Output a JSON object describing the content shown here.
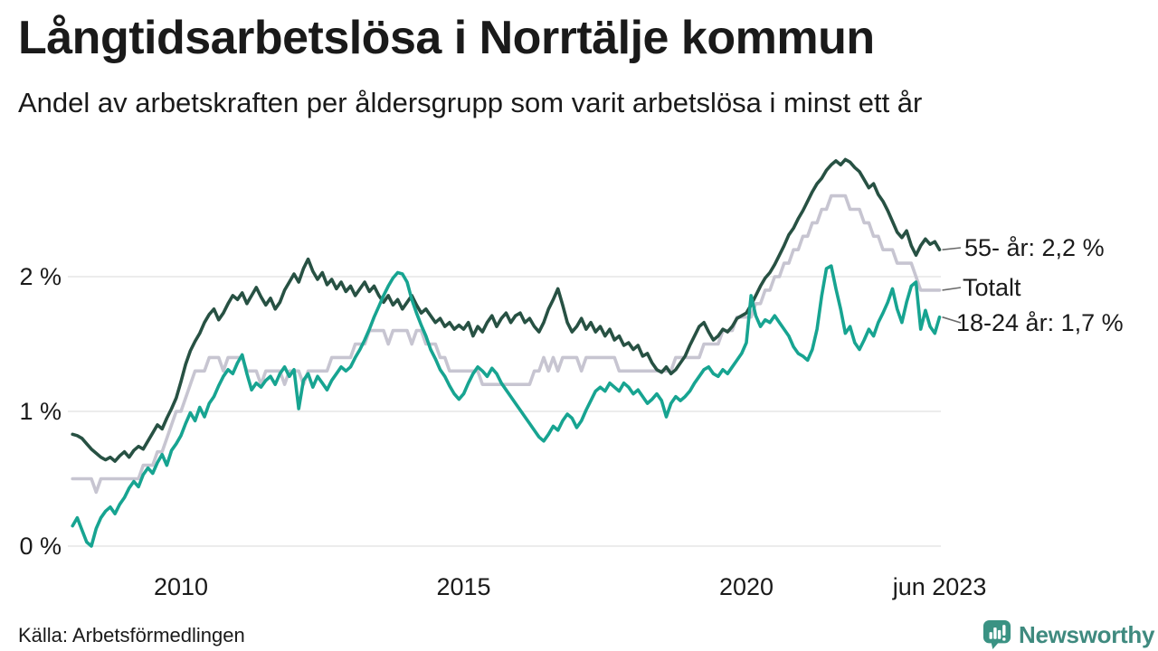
{
  "header": {
    "title": "Långtidsarbetslösa i Norrtälje kommun",
    "subtitle": "Andel av arbetskraften per åldersgrupp som varit arbetslösa i minst ett år"
  },
  "footer": {
    "source": "Källa: Arbetsförmedlingen",
    "brand": "Newsworthy",
    "brand_icon": "newsworthy-bubble-chart-icon"
  },
  "colors": {
    "senior_line": "#275143",
    "total_line": "#c7c5d1",
    "youth_line": "#17a491",
    "grid": "#e6e6e6",
    "text": "#1a1a1a",
    "brand": "#3f8a7f"
  },
  "chart_data": {
    "type": "line",
    "title": "Långtidsarbetslösa i Norrtälje kommun",
    "subtitle": "Andel av arbetskraften per åldersgrupp som varit arbetslösa i minst ett år",
    "xlabel": "",
    "ylabel": "",
    "x_start": {
      "year": 2008,
      "month": 2
    },
    "frequency": "monthly",
    "x_end_label": "jun 2023",
    "ylim": [
      0,
      2.95
    ],
    "grid": "horizontal",
    "legend_position": "right-end-labels",
    "x_ticks": [
      {
        "label": "2010",
        "t": 2010
      },
      {
        "label": "2015",
        "t": 2015
      },
      {
        "label": "2020",
        "t": 2020
      },
      {
        "label": "jun 2023",
        "t": 2023.4167
      }
    ],
    "y_ticks": [
      {
        "label": "0 %",
        "v": 0
      },
      {
        "label": "1 %",
        "v": 1
      },
      {
        "label": "2 %",
        "v": 2
      }
    ],
    "series": [
      {
        "name": "Totalt",
        "color": "#c7c5d1",
        "values": [
          0.5,
          0.5,
          0.5,
          0.5,
          0.5,
          0.4,
          0.5,
          0.5,
          0.5,
          0.5,
          0.5,
          0.5,
          0.5,
          0.5,
          0.5,
          0.6,
          0.6,
          0.6,
          0.7,
          0.7,
          0.8,
          0.9,
          1.0,
          1.0,
          1.1,
          1.2,
          1.3,
          1.3,
          1.3,
          1.4,
          1.4,
          1.4,
          1.3,
          1.4,
          1.4,
          1.4,
          1.4,
          1.3,
          1.3,
          1.3,
          1.2,
          1.3,
          1.3,
          1.3,
          1.3,
          1.2,
          1.3,
          1.3,
          1.3,
          1.2,
          1.3,
          1.3,
          1.3,
          1.3,
          1.3,
          1.4,
          1.4,
          1.4,
          1.4,
          1.4,
          1.5,
          1.5,
          1.5,
          1.6,
          1.6,
          1.6,
          1.6,
          1.5,
          1.6,
          1.6,
          1.6,
          1.6,
          1.5,
          1.6,
          1.6,
          1.5,
          1.5,
          1.5,
          1.4,
          1.4,
          1.3,
          1.3,
          1.3,
          1.3,
          1.3,
          1.3,
          1.3,
          1.2,
          1.2,
          1.2,
          1.2,
          1.2,
          1.2,
          1.2,
          1.2,
          1.2,
          1.2,
          1.2,
          1.3,
          1.3,
          1.4,
          1.3,
          1.4,
          1.3,
          1.4,
          1.4,
          1.4,
          1.4,
          1.3,
          1.4,
          1.4,
          1.4,
          1.4,
          1.4,
          1.4,
          1.4,
          1.3,
          1.3,
          1.3,
          1.3,
          1.3,
          1.3,
          1.3,
          1.3,
          1.3,
          1.3,
          1.3,
          1.3,
          1.4,
          1.4,
          1.4,
          1.4,
          1.4,
          1.4,
          1.5,
          1.5,
          1.5,
          1.5,
          1.6,
          1.6,
          1.6,
          1.7,
          1.7,
          1.7,
          1.7,
          1.8,
          1.8,
          1.9,
          1.9,
          2.0,
          2.0,
          2.1,
          2.1,
          2.2,
          2.2,
          2.3,
          2.3,
          2.4,
          2.4,
          2.5,
          2.5,
          2.6,
          2.6,
          2.6,
          2.6,
          2.5,
          2.5,
          2.5,
          2.4,
          2.4,
          2.3,
          2.3,
          2.2,
          2.2,
          2.2,
          2.1,
          2.1,
          2.1,
          2.1,
          2.0,
          1.9,
          1.9,
          1.9,
          1.9,
          1.9
        ]
      },
      {
        "name": "55- år",
        "color": "#275143",
        "values": [
          0.83,
          0.82,
          0.8,
          0.76,
          0.72,
          0.69,
          0.66,
          0.64,
          0.66,
          0.63,
          0.67,
          0.7,
          0.66,
          0.71,
          0.74,
          0.72,
          0.78,
          0.84,
          0.9,
          0.87,
          0.95,
          1.02,
          1.1,
          1.22,
          1.35,
          1.45,
          1.52,
          1.58,
          1.66,
          1.72,
          1.76,
          1.68,
          1.73,
          1.8,
          1.86,
          1.83,
          1.88,
          1.8,
          1.86,
          1.92,
          1.85,
          1.79,
          1.84,
          1.76,
          1.81,
          1.9,
          1.96,
          2.02,
          1.96,
          2.06,
          2.13,
          2.04,
          1.98,
          2.03,
          1.94,
          1.98,
          1.91,
          1.96,
          1.89,
          1.93,
          1.86,
          1.91,
          1.96,
          1.89,
          1.93,
          1.86,
          1.81,
          1.86,
          1.79,
          1.83,
          1.76,
          1.81,
          1.86,
          1.79,
          1.73,
          1.76,
          1.71,
          1.66,
          1.69,
          1.63,
          1.66,
          1.61,
          1.64,
          1.61,
          1.66,
          1.56,
          1.63,
          1.59,
          1.66,
          1.71,
          1.63,
          1.69,
          1.73,
          1.66,
          1.71,
          1.73,
          1.66,
          1.69,
          1.63,
          1.59,
          1.66,
          1.76,
          1.83,
          1.91,
          1.79,
          1.66,
          1.59,
          1.63,
          1.69,
          1.61,
          1.66,
          1.59,
          1.63,
          1.56,
          1.61,
          1.53,
          1.56,
          1.49,
          1.51,
          1.46,
          1.49,
          1.41,
          1.43,
          1.36,
          1.31,
          1.29,
          1.33,
          1.28,
          1.31,
          1.36,
          1.41,
          1.49,
          1.56,
          1.63,
          1.66,
          1.59,
          1.53,
          1.56,
          1.61,
          1.59,
          1.63,
          1.69,
          1.71,
          1.73,
          1.79,
          1.86,
          1.93,
          1.99,
          2.03,
          2.09,
          2.16,
          2.23,
          2.31,
          2.36,
          2.43,
          2.49,
          2.56,
          2.63,
          2.69,
          2.73,
          2.79,
          2.83,
          2.86,
          2.83,
          2.87,
          2.85,
          2.81,
          2.78,
          2.72,
          2.66,
          2.69,
          2.61,
          2.56,
          2.49,
          2.41,
          2.33,
          2.29,
          2.34,
          2.23,
          2.16,
          2.23,
          2.28,
          2.24,
          2.26,
          2.2
        ]
      },
      {
        "name": "18-24 år",
        "color": "#17a491",
        "values": [
          0.15,
          0.21,
          0.12,
          0.03,
          0.0,
          0.13,
          0.21,
          0.26,
          0.29,
          0.24,
          0.31,
          0.36,
          0.43,
          0.48,
          0.44,
          0.53,
          0.58,
          0.54,
          0.62,
          0.68,
          0.6,
          0.71,
          0.76,
          0.82,
          0.91,
          0.99,
          0.93,
          1.03,
          0.96,
          1.06,
          1.11,
          1.19,
          1.26,
          1.31,
          1.28,
          1.36,
          1.42,
          1.28,
          1.16,
          1.21,
          1.18,
          1.23,
          1.26,
          1.2,
          1.28,
          1.33,
          1.26,
          1.31,
          1.02,
          1.23,
          1.28,
          1.18,
          1.26,
          1.21,
          1.16,
          1.23,
          1.28,
          1.33,
          1.3,
          1.33,
          1.4,
          1.46,
          1.53,
          1.61,
          1.7,
          1.78,
          1.86,
          1.93,
          1.99,
          2.03,
          2.02,
          1.96,
          1.83,
          1.73,
          1.64,
          1.56,
          1.46,
          1.39,
          1.31,
          1.26,
          1.19,
          1.13,
          1.09,
          1.13,
          1.21,
          1.28,
          1.33,
          1.3,
          1.26,
          1.32,
          1.28,
          1.21,
          1.16,
          1.11,
          1.06,
          1.01,
          0.96,
          0.91,
          0.86,
          0.81,
          0.78,
          0.83,
          0.89,
          0.86,
          0.93,
          0.98,
          0.95,
          0.88,
          0.93,
          1.01,
          1.08,
          1.15,
          1.18,
          1.15,
          1.21,
          1.18,
          1.15,
          1.21,
          1.18,
          1.13,
          1.16,
          1.11,
          1.06,
          1.09,
          1.13,
          1.08,
          0.96,
          1.06,
          1.11,
          1.08,
          1.11,
          1.15,
          1.21,
          1.26,
          1.31,
          1.33,
          1.28,
          1.26,
          1.31,
          1.28,
          1.33,
          1.38,
          1.43,
          1.51,
          1.86,
          1.71,
          1.63,
          1.68,
          1.66,
          1.71,
          1.66,
          1.61,
          1.56,
          1.48,
          1.43,
          1.41,
          1.38,
          1.46,
          1.61,
          1.86,
          2.06,
          2.08,
          1.91,
          1.76,
          1.58,
          1.63,
          1.51,
          1.46,
          1.53,
          1.61,
          1.56,
          1.66,
          1.73,
          1.81,
          1.91,
          1.76,
          1.66,
          1.81,
          1.93,
          1.96,
          1.61,
          1.75,
          1.63,
          1.58,
          1.7
        ]
      }
    ],
    "annotations": [
      {
        "label": "55- år: 2,2 %",
        "series": "55- år",
        "end_value": 2.2
      },
      {
        "label": "Totalt",
        "series": "Totalt",
        "end_value": 1.9
      },
      {
        "label": "18-24 år: 1,7 %",
        "series": "18-24 år",
        "end_value": 1.7
      }
    ]
  }
}
